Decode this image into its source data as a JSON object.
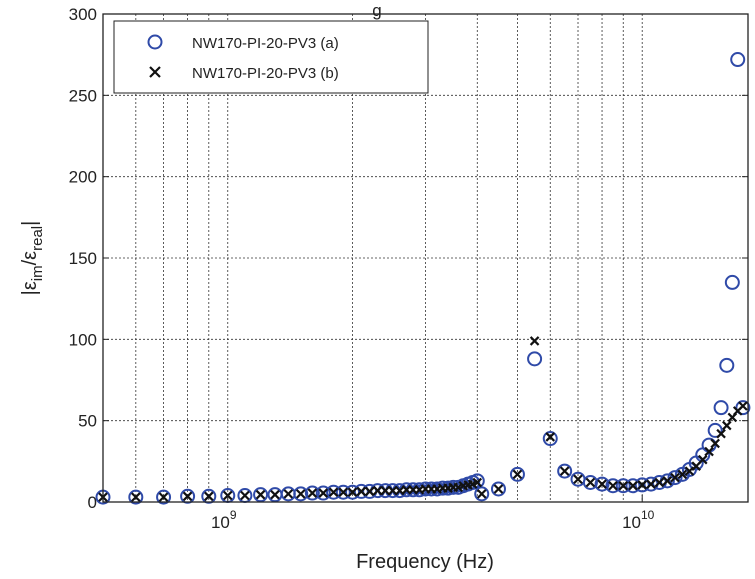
{
  "chart_data": {
    "type": "scatter",
    "title": "",
    "title_fragment": "g",
    "xlabel": "Frequency (Hz)",
    "ylabel_parts": {
      "open": "|ε",
      "sub1": "im",
      "mid": "/ε",
      "sub2": "real",
      "close": "|"
    },
    "x_scale": "log",
    "xlim": [
      500000000,
      18000000000
    ],
    "ylim": [
      0,
      300
    ],
    "yticks": [
      0,
      50,
      100,
      150,
      200,
      250,
      300
    ],
    "ytick_labels": [
      "0",
      "50",
      "100",
      "150",
      "200",
      "250",
      "300"
    ],
    "x_major_ticks": [
      {
        "value": 1000000000,
        "base": "10",
        "exp": "9"
      },
      {
        "value": 10000000000,
        "base": "10",
        "exp": "10"
      }
    ],
    "grid": true,
    "legend_position": "top-left",
    "colors": {
      "series_a": "#2f4aa8",
      "series_b": "#111111",
      "grid": "#333333"
    },
    "series": [
      {
        "name": "NW170-PI-20-PV3 (a)",
        "marker": "circle",
        "x": [
          500000000,
          600000000,
          700000000,
          800000000,
          900000000,
          1000000000,
          1100000000,
          1200000000,
          1300000000,
          1400000000,
          1500000000,
          1600000000,
          1700000000,
          1800000000,
          1900000000,
          2000000000,
          2100000000,
          2200000000,
          2300000000,
          2400000000,
          2500000000,
          2600000000,
          2700000000,
          2800000000,
          2900000000,
          3000000000,
          3100000000,
          3200000000,
          3300000000,
          3400000000,
          3500000000,
          3600000000,
          3700000000,
          3800000000,
          3900000000,
          4000000000,
          4100000000,
          4500000000,
          5000000000,
          5500000000,
          6000000000,
          6500000000,
          7000000000,
          7500000000,
          8000000000,
          8500000000,
          9000000000,
          9500000000,
          10000000000,
          10500000000,
          11000000000,
          11500000000,
          12000000000,
          12500000000,
          13000000000,
          13500000000,
          14000000000,
          14500000000,
          15000000000,
          15500000000,
          16000000000,
          16500000000,
          17000000000,
          17500000000
        ],
        "y": [
          3,
          3,
          3,
          3.5,
          3.5,
          4,
          4,
          4.5,
          4.5,
          5,
          5,
          5.5,
          5.5,
          6,
          6,
          6,
          6.5,
          6.5,
          7,
          7,
          7,
          7,
          7.5,
          7.5,
          7.5,
          8,
          8,
          8,
          8.5,
          8.5,
          9,
          9,
          10,
          11,
          12,
          13,
          5,
          8,
          17,
          88,
          39,
          19,
          14,
          12,
          11,
          10,
          10,
          10,
          10.5,
          11,
          12,
          13,
          15,
          17,
          20,
          24,
          29,
          35,
          44,
          58,
          84,
          135,
          272,
          58
        ]
      },
      {
        "name": "NW170-PI-20-PV3 (b)",
        "marker": "x",
        "x": [
          500000000,
          600000000,
          700000000,
          800000000,
          900000000,
          1000000000,
          1100000000,
          1200000000,
          1300000000,
          1400000000,
          1500000000,
          1600000000,
          1700000000,
          1800000000,
          1900000000,
          2000000000,
          2100000000,
          2200000000,
          2300000000,
          2400000000,
          2500000000,
          2600000000,
          2700000000,
          2800000000,
          2900000000,
          3000000000,
          3100000000,
          3200000000,
          3300000000,
          3400000000,
          3500000000,
          3600000000,
          3700000000,
          3800000000,
          3900000000,
          4000000000,
          4100000000,
          4500000000,
          5000000000,
          5500000000,
          6000000000,
          6500000000,
          7000000000,
          7500000000,
          8000000000,
          8500000000,
          9000000000,
          9500000000,
          10000000000,
          10500000000,
          11000000000,
          11500000000,
          12000000000,
          12500000000,
          13000000000,
          13500000000,
          14000000000,
          14500000000,
          15000000000,
          15500000000,
          16000000000,
          16500000000,
          17000000000,
          17500000000
        ],
        "y": [
          3,
          3,
          3,
          3.5,
          3.5,
          4,
          4,
          4.5,
          4.5,
          5,
          5,
          5.5,
          5.5,
          6,
          6,
          6,
          6.5,
          6.5,
          7,
          7,
          7,
          7,
          7.5,
          7.5,
          7.5,
          8,
          8,
          8,
          8.5,
          8.5,
          9,
          9,
          10,
          10.5,
          11,
          12,
          5,
          8,
          17,
          99,
          40,
          19,
          14,
          12,
          11,
          10,
          10,
          10,
          10.5,
          11,
          12,
          13,
          15,
          17,
          19,
          22,
          26,
          31,
          36,
          42,
          47,
          52,
          56,
          59
        ]
      }
    ]
  }
}
